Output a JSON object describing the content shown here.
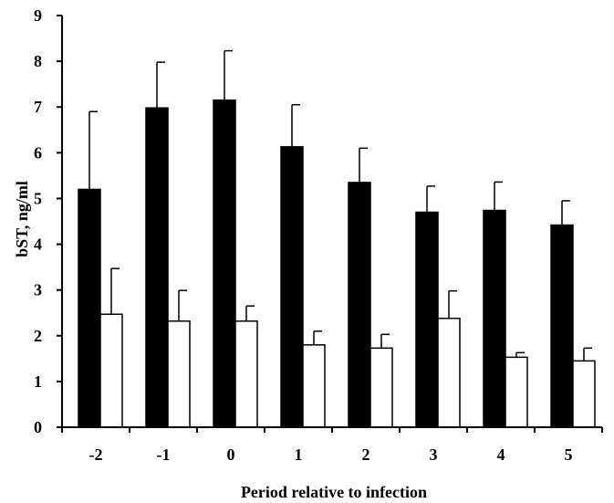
{
  "chart_data": {
    "type": "bar",
    "title": "",
    "xlabel": "Period relative to infection",
    "ylabel": "bST, ng/ml",
    "ylim": [
      0,
      9
    ],
    "yticks": [
      0,
      1,
      2,
      3,
      4,
      5,
      6,
      7,
      8,
      9
    ],
    "grid": false,
    "legend": "none",
    "categories": [
      "-2",
      "-1",
      "0",
      "1",
      "2",
      "3",
      "4",
      "5"
    ],
    "series": [
      {
        "color": "#000000",
        "values": [
          5.2,
          6.98,
          7.15,
          6.13,
          5.35,
          4.7,
          4.74,
          4.42
        ],
        "errors": [
          1.7,
          1.0,
          1.08,
          0.92,
          0.75,
          0.57,
          0.62,
          0.53
        ]
      },
      {
        "color": "#ffffff",
        "values": [
          2.47,
          2.32,
          2.32,
          1.8,
          1.73,
          2.38,
          1.53,
          1.45
        ],
        "errors": [
          1.0,
          0.67,
          0.33,
          0.3,
          0.3,
          0.6,
          0.1,
          0.28
        ]
      }
    ]
  }
}
